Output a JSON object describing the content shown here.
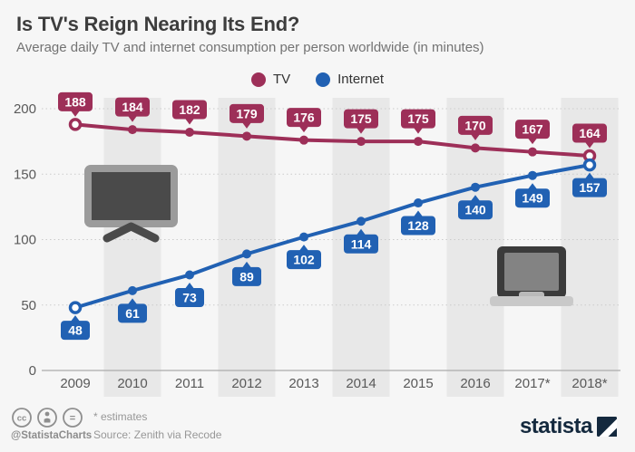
{
  "header": {
    "title": "Is TV's Reign Nearing Its End?",
    "subtitle": "Average daily TV and internet consumption per person worldwide (in minutes)"
  },
  "chart_data": {
    "type": "line",
    "categories": [
      "2009",
      "2010",
      "2011",
      "2012",
      "2013",
      "2014",
      "2015",
      "2016",
      "2017*",
      "2018*"
    ],
    "series": [
      {
        "name": "TV",
        "color": "#9d2f58",
        "label_position": "above",
        "values": [
          188,
          184,
          182,
          179,
          176,
          175,
          175,
          170,
          167,
          164
        ]
      },
      {
        "name": "Internet",
        "color": "#2161b3",
        "label_position": "below",
        "values": [
          48,
          61,
          73,
          89,
          102,
          114,
          128,
          140,
          149,
          157
        ]
      }
    ],
    "title": "Is TV's Reign Nearing Its End?",
    "xlabel": "",
    "ylabel": "",
    "yticks": [
      0,
      50,
      100,
      150,
      200
    ],
    "ylim": [
      0,
      200
    ],
    "grid": "dotted-horizontal",
    "legend_position": "top-center",
    "band_color": "#e8e8e8",
    "axis_text_color": "#595959",
    "icons": [
      "tv-icon",
      "laptop-icon"
    ]
  },
  "footer": {
    "license_icons": [
      "cc-icon",
      "attribution-icon",
      "equals-icon"
    ],
    "license_handle": "@StatistaCharts",
    "estimates_note": "* estimates",
    "source": "Source: Zenith via Recode",
    "brand": "statista"
  }
}
